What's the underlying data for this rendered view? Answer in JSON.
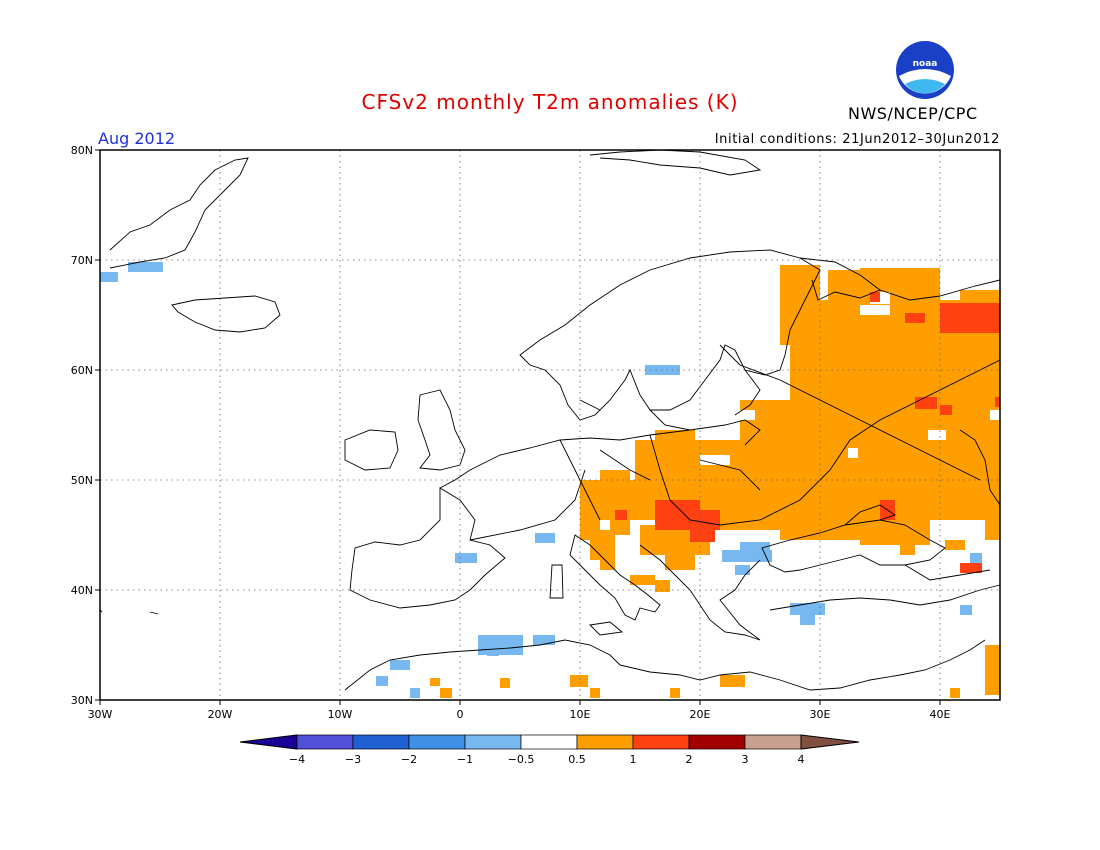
{
  "title": "CFSv2 monthly T2m anomalies (K)",
  "agency": "NWS/NCEP/CPC",
  "logo_text": "noaa",
  "month_label": "Aug 2012",
  "initial_conditions": "Initial conditions: 21Jun2012–30Jun2012",
  "axes": {
    "lon_ticks": [
      "30W",
      "20W",
      "10W",
      "0",
      "10E",
      "20E",
      "30E",
      "40E"
    ],
    "lat_ticks": [
      "80N",
      "70N",
      "60N",
      "50N",
      "40N",
      "30N"
    ],
    "lon_range": [
      -30,
      45
    ],
    "lat_range": [
      30,
      80
    ]
  },
  "colorbar": {
    "labels": [
      "−4",
      "−3",
      "−2",
      "−1",
      "−0.5",
      "0.5",
      "1",
      "2",
      "3",
      "4"
    ],
    "colors": [
      "#1a0096",
      "#5050d8",
      "#2060d0",
      "#4090e8",
      "#78b8f0",
      "#ffffff",
      "#ff9e00",
      "#ff4010",
      "#a00000",
      "#c8a090",
      "#805040"
    ]
  },
  "chart_data": {
    "type": "heatmap",
    "variable": "T2m anomalies (K)",
    "region": "Europe",
    "notable_anomalies": [
      {
        "area": "European Russia / Ukraine",
        "category": "0.5 to 1"
      },
      {
        "area": "Hungary / Serbia",
        "category": "1 to 2"
      },
      {
        "area": "Northwest Russia near 65N",
        "category": "1 to 2"
      },
      {
        "area": "Italy / Balkans",
        "category": "0.5 to 1"
      },
      {
        "area": "Turkey / Black Sea",
        "category": "-1 to -0.5"
      },
      {
        "area": "Algeria",
        "category": "-1 to -0.5"
      },
      {
        "area": "Greenland east coast",
        "category": "-1 to -0.5"
      }
    ]
  }
}
